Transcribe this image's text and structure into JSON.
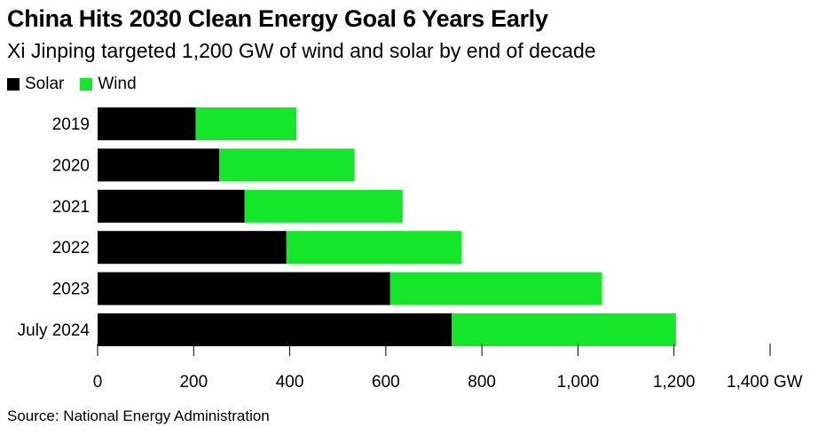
{
  "title": "China Hits 2030 Clean Energy Goal 6 Years Early",
  "subtitle": "Xi Jinping targeted 1,200 GW of wind and solar by end of decade",
  "source": "Source: National Energy Administration",
  "colors": {
    "solar": "#000000",
    "wind": "#14e62a"
  },
  "chart_data": {
    "type": "bar",
    "orientation": "horizontal",
    "stacked": true,
    "categories": [
      "2019",
      "2020",
      "2021",
      "2022",
      "2023",
      "July 2024"
    ],
    "series": [
      {
        "name": "Solar",
        "values": [
          204,
          253,
          306,
          393,
          609,
          737
        ]
      },
      {
        "name": "Wind",
        "values": [
          210,
          282,
          329,
          365,
          441,
          467
        ]
      }
    ],
    "xlim": [
      0,
      1400
    ],
    "xticks": [
      "0",
      "200",
      "400",
      "600",
      "800",
      "1,000",
      "1,200",
      "1,400 GW"
    ],
    "xtick_values": [
      0,
      200,
      400,
      600,
      800,
      1000,
      1200,
      1400
    ],
    "legend_position": "top-left",
    "grid": false
  }
}
